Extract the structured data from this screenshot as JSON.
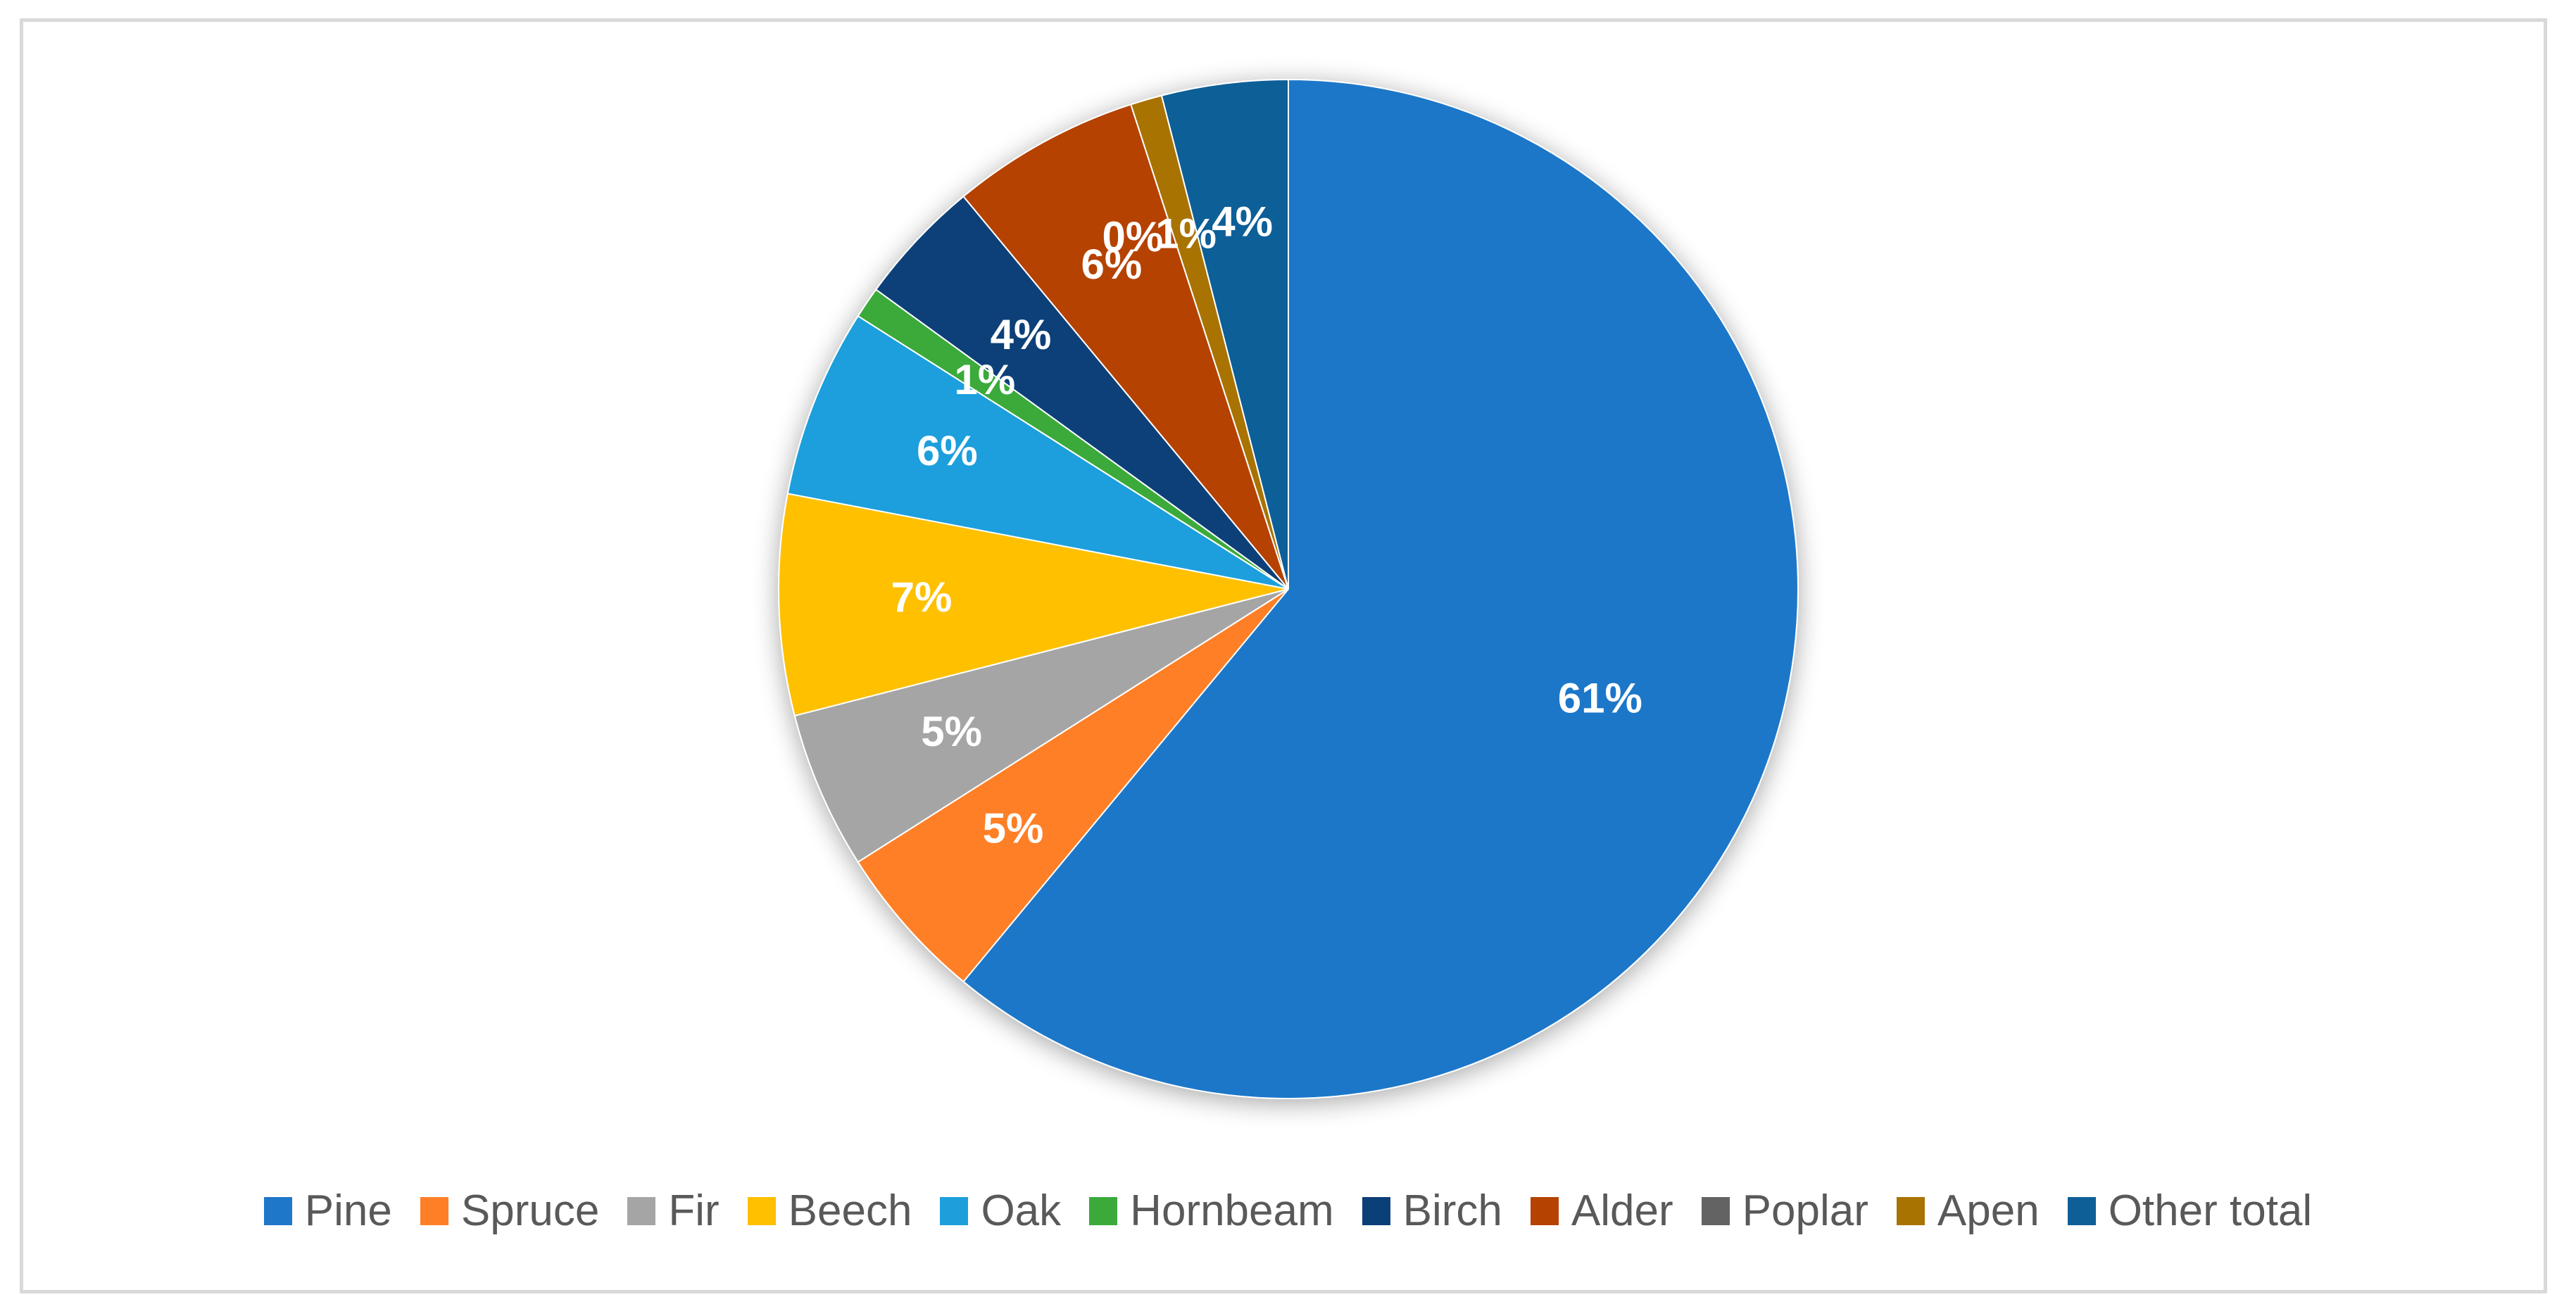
{
  "chart_data": {
    "type": "pie",
    "title": "",
    "legend_position": "bottom",
    "slices": [
      {
        "name": "Pine",
        "value": 61,
        "label": "61%",
        "color": "#1F77C9"
      },
      {
        "name": "Spruce",
        "value": 5,
        "label": "5%",
        "color": "#FF7F27"
      },
      {
        "name": "Fir",
        "value": 5,
        "label": "5%",
        "color": "#A5A5A5"
      },
      {
        "name": "Beech",
        "value": 7,
        "label": "7%",
        "color": "#FFC000"
      },
      {
        "name": "Oak",
        "value": 6,
        "label": "6%",
        "color": "#1E9FDC"
      },
      {
        "name": "Hornbeam",
        "value": 1,
        "label": "1%",
        "color": "#3BAA3B"
      },
      {
        "name": "Birch",
        "value": 4,
        "label": "4%",
        "color": "#0B3F78"
      },
      {
        "name": "Alder",
        "value": 6,
        "label": "6%",
        "color": "#B54200"
      },
      {
        "name": "Poplar",
        "value": 0,
        "label": "0%",
        "color": "#636363"
      },
      {
        "name": "Apen",
        "value": 1,
        "label": "1%",
        "color": "#A87300"
      },
      {
        "name": "Other total",
        "value": 4,
        "label": "4%",
        "color": "#0E5F98"
      }
    ]
  }
}
